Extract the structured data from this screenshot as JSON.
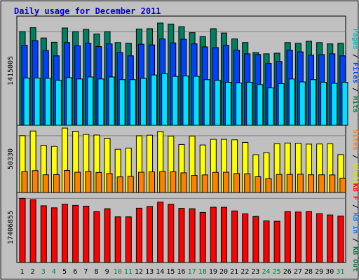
{
  "chart_data": {
    "type": "bar",
    "title": "Daily usage for December 2011",
    "background": "#c0c0c0",
    "title_color": "#0000cc",
    "categories": [
      "1",
      "2",
      "3",
      "4",
      "5",
      "6",
      "7",
      "8",
      "9",
      "10",
      "11",
      "12",
      "13",
      "14",
      "15",
      "16",
      "17",
      "18",
      "19",
      "20",
      "21",
      "22",
      "23",
      "24",
      "25",
      "26",
      "27",
      "28",
      "29",
      "30",
      "31"
    ],
    "weekend_days": [
      "3",
      "4",
      "10",
      "11",
      "17",
      "18",
      "24",
      "25",
      "31"
    ],
    "day_color": "#000000",
    "weekend_color": "#008040",
    "panels": [
      {
        "id": "top",
        "tick_label": "1415005",
        "ymax": 1650000,
        "right_labels": [
          {
            "text": "Pages",
            "color": "#00c0c0"
          },
          {
            "text": "Files",
            "color": "#0040ff"
          },
          {
            "text": "Hits",
            "color": "#008040"
          }
        ],
        "series": [
          {
            "name": "Hits",
            "color": "#008060",
            "values": [
              1415005,
              1475000,
              1320000,
              1255000,
              1470000,
              1415000,
              1450000,
              1380000,
              1415000,
              1250000,
              1240000,
              1455000,
              1460000,
              1545000,
              1530000,
              1490000,
              1400000,
              1340000,
              1460000,
              1395000,
              1305000,
              1250000,
              1100000,
              1080000,
              1090000,
              1250000,
              1240000,
              1270000,
              1250000,
              1230000,
              1240000
            ]
          },
          {
            "name": "Files",
            "color": "#0040ff",
            "values": [
              1210000,
              1280000,
              1130000,
              1050000,
              1250000,
              1200000,
              1240000,
              1190000,
              1230000,
              1100000,
              1050000,
              1225000,
              1215000,
              1305000,
              1245000,
              1300000,
              1230000,
              1185000,
              1175000,
              1210000,
              1135000,
              1080000,
              1070000,
              935000,
              965000,
              1135000,
              1110000,
              1060000,
              1070000,
              1080000,
              1050000
            ]
          },
          {
            "name": "Pages",
            "color": "#00e0ff",
            "values": [
              715000,
              715000,
              710000,
              680000,
              720000,
              700000,
              730000,
              700000,
              730000,
              690000,
              690000,
              710000,
              760000,
              780000,
              740000,
              745000,
              740000,
              690000,
              680000,
              650000,
              640000,
              650000,
              615000,
              565000,
              630000,
              700000,
              655000,
              690000,
              650000,
              635000,
              650000
            ]
          }
        ]
      },
      {
        "id": "middle",
        "tick_label": "50330",
        "ymax": 55000,
        "right_labels": [
          {
            "text": "Sites",
            "color": "#ff8000"
          },
          {
            "text": "Visits",
            "color": "#e0e000"
          }
        ],
        "series": [
          {
            "name": "Visits",
            "color": "#ffff00",
            "values": [
              46500,
              50300,
              38600,
              37700,
              52700,
              50100,
              47500,
              47000,
              44400,
              35400,
              36300,
              46400,
              46900,
              49900,
              46200,
              39300,
              46200,
              38900,
              43500,
              43500,
              43100,
              41000,
              30900,
              32600,
              39900,
              40500,
              40300,
              39600,
              39700,
              39800,
              31000
            ]
          },
          {
            "name": "Sites",
            "color": "#ff8000",
            "values": [
              17200,
              17900,
              14500,
              14700,
              18000,
              16600,
              17200,
              16400,
              15500,
              12800,
              13200,
              16600,
              16900,
              17200,
              17000,
              16100,
              14000,
              14400,
              16500,
              16600,
              15500,
              15300,
              12900,
              11400,
              14800,
              14800,
              15000,
              14500,
              14500,
              14400,
              11800
            ]
          }
        ]
      },
      {
        "id": "bottom",
        "tick_label": "17406855",
        "ymax": 19000000,
        "right_labels": [
          {
            "text": "KB F",
            "color": "#ff0000"
          },
          {
            "text": "KB In",
            "color": "#0080ff"
          },
          {
            "text": "KB Out",
            "color": "#008040"
          }
        ],
        "series": [
          {
            "name": "KB F",
            "color": "#ff0000",
            "values": [
              17406855,
              17050000,
              15400000,
              14850000,
              15800000,
              15500000,
              15300000,
              13800000,
              14600000,
              12400000,
              12400000,
              14750000,
              15200000,
              16400000,
              15800000,
              14700000,
              14600000,
              13600000,
              15000000,
              15000000,
              14000000,
              13200000,
              12500000,
              11300000,
              11200000,
              13800000,
              13700000,
              13800000,
              13250000,
              12900000,
              12600000
            ]
          }
        ]
      }
    ]
  }
}
